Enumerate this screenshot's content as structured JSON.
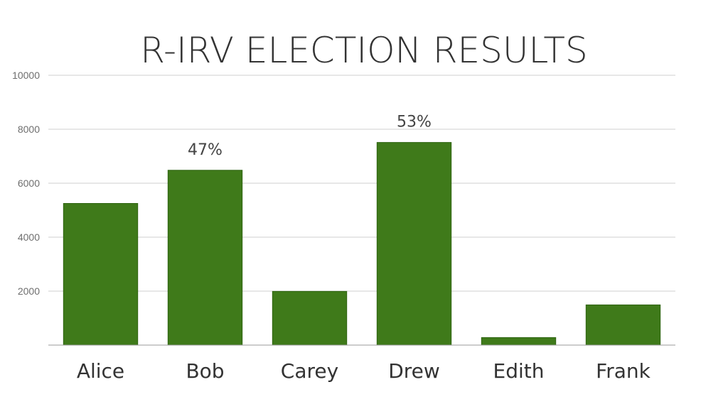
{
  "chart_data": {
    "type": "bar",
    "title": "R-IRV ELECTION RESULTS",
    "categories": [
      "Alice",
      "Bob",
      "Carey",
      "Drew",
      "Edith",
      "Frank"
    ],
    "values": [
      5250,
      6480,
      1990,
      7510,
      280,
      1490
    ],
    "data_labels": [
      "",
      "47%",
      "",
      "53%",
      "",
      ""
    ],
    "ylim": [
      0,
      10000
    ],
    "yticks": [
      2000,
      4000,
      6000,
      8000,
      10000
    ],
    "grid": true,
    "legend": "none",
    "colors": {
      "bar": "#3f7a1a",
      "bar_stroke": "#2f6412",
      "grid": "#cfcfcf",
      "axis": "#9a9a9a",
      "title": "#333333"
    }
  }
}
